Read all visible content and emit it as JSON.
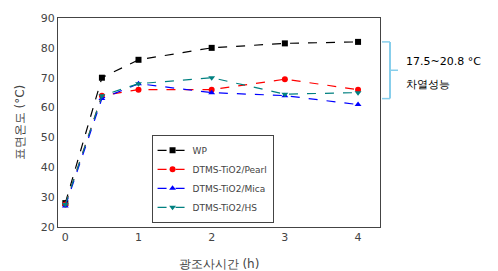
{
  "chart_data": {
    "type": "line",
    "x": [
      0,
      0.5,
      1,
      2,
      3,
      4
    ],
    "series": [
      {
        "name": "WP",
        "color": "black",
        "marker": "square",
        "line_style": "dash",
        "values": [
          28,
          70,
          76,
          80,
          81.5,
          82
        ]
      },
      {
        "name": "DTMS-TiO2/Pearl",
        "color": "red",
        "marker": "circle",
        "line_style": "dash",
        "values": [
          27.5,
          64,
          66,
          66,
          69.5,
          66
        ]
      },
      {
        "name": "DTMS-TiO2/Mica",
        "color": "blue",
        "marker": "triangle-up",
        "line_style": "dash",
        "values": [
          27,
          63,
          68,
          65,
          64,
          61
        ]
      },
      {
        "name": "DTMS-TiO2/HS",
        "color": "#008080",
        "marker": "triangle-down",
        "line_style": "dash",
        "values": [
          27.5,
          64,
          68,
          70,
          64.5,
          65
        ]
      }
    ],
    "xlabel": "광조사시간 (h)",
    "ylabel": "표면온도 (°C)",
    "xlim": [
      -0.1,
      4.3
    ],
    "xticks": [
      0,
      1,
      2,
      3,
      4
    ],
    "ylim": [
      20,
      90
    ],
    "yticks": [
      20,
      30,
      40,
      50,
      60,
      70,
      80,
      90
    ],
    "grid": false,
    "legend": "bottom",
    "bracket": {
      "from": 82,
      "to": 63,
      "color": "#87CEEB"
    },
    "annotations": [
      "17.5~20.8 °C",
      "차열성능"
    ]
  }
}
